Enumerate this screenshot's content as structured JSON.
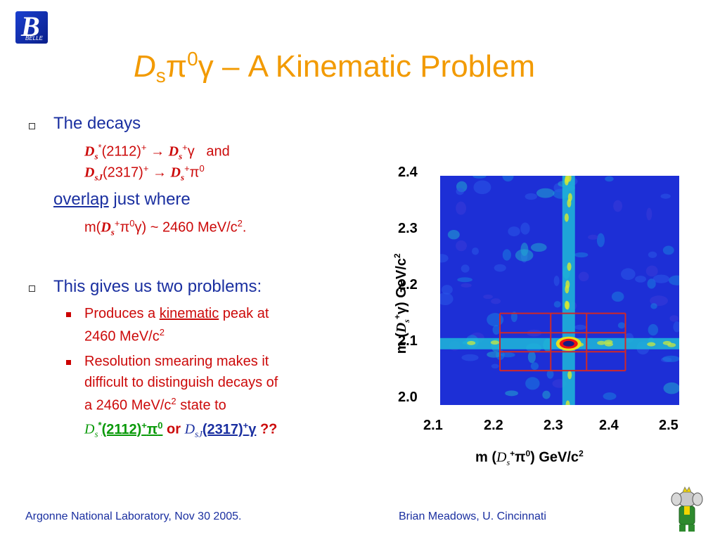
{
  "logo": {
    "mark": "B",
    "sub": "BELLE"
  },
  "title": {
    "italic": "D",
    "sub": "s",
    "mid": "π",
    "sup": "0",
    "gamma": "γ",
    "rest": " – A Kinematic Problem"
  },
  "bullet1": {
    "heading": "The decays",
    "line1": {
      "d": "D",
      "s": "s",
      "star": "*",
      "mass": "(2112)",
      "plus": "+",
      "arrow": "→",
      "d2": "D",
      "s2": "s",
      "plus2": "+",
      "g": "γ",
      "and": "and"
    },
    "line2": {
      "d": "D",
      "s": "sJ",
      "mass": "(2317)",
      "plus": "+",
      "arrow": "→",
      "d2": "D",
      "s2": "s",
      "plus2": "+",
      "pi": "π",
      "zero": "0"
    },
    "overlap": "overlap",
    "just_where": " just where",
    "line3": {
      "pre": "m(",
      "d": "D",
      "s": "s",
      "plus": "+",
      "pi": "π",
      "zero": "0",
      "g": "γ",
      "post": ") ~ 2460 MeV/c",
      "two": "2",
      "dot": "."
    }
  },
  "bullet2": {
    "heading": "This gives us two problems:",
    "item1": {
      "pre": "Produces a ",
      "kinematic": "kinematic",
      "post": " peak at",
      "line2": "2460 MeV/c",
      "two": "2"
    },
    "item2": {
      "l1": "Resolution smearing makes it",
      "l2": "difficult to distinguish decays of",
      "l3": "a 2460 MeV/c",
      "two": "2",
      "l3b": " state to"
    },
    "last": {
      "d1": "D",
      "s1": "s",
      "star": "*",
      "m1": "(2112)",
      "p1": "+",
      "pi": "π",
      "z": "0",
      "or": "or",
      "d2": "D",
      "s2": "sJ",
      "m2": "(2317)",
      "p2": "+",
      "g": "γ",
      "q": "??"
    }
  },
  "chart_data": {
    "type": "heatmap",
    "title": "",
    "xlabel": {
      "pre": "m (",
      "d": "D",
      "s": "s",
      "plus": "+",
      "pi": "π",
      "zero": "0",
      "post": ")  GeV/c",
      "two": "2"
    },
    "ylabel": {
      "pre": "m (",
      "d": "D",
      "s": "s",
      "plus": "+",
      "g": "γ",
      "post": ")  GeV/c",
      "two": "2"
    },
    "xlim": [
      2.1,
      2.5
    ],
    "ylim": [
      2.0,
      2.4
    ],
    "x_ticks": [
      "2.1",
      "2.2",
      "2.3",
      "2.4",
      "2.5"
    ],
    "y_ticks": [
      "2.0",
      "2.1",
      "2.2",
      "2.3",
      "2.4"
    ],
    "bands": [
      {
        "axis": "x",
        "value": 2.315
      },
      {
        "axis": "y",
        "value": 2.107
      }
    ],
    "peak": {
      "x": 2.315,
      "y": 2.107
    },
    "grid_box": {
      "x": [
        2.2,
        2.285,
        2.345,
        2.41
      ],
      "y": [
        2.06,
        2.093,
        2.126,
        2.16
      ]
    },
    "colors": {
      "background": "#1d2fd6",
      "band": "#1fb8d8",
      "peak": "#f01010",
      "grid": "#d02828"
    }
  },
  "footer": {
    "left": "Argonne National Laboratory, Nov 30 2005.",
    "right": "Brian Meadows, U. Cincinnati"
  }
}
